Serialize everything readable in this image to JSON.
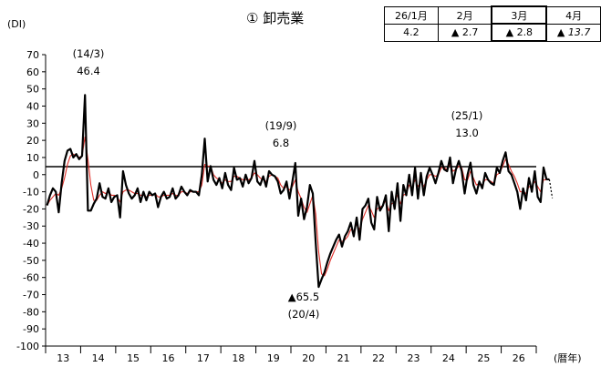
{
  "title": "① 卸売業",
  "y_unit": "(DI)",
  "x_unit": "(暦年)",
  "table": {
    "headers": [
      "26/1月",
      "2月",
      "3月",
      "4月"
    ],
    "values": [
      "4.2",
      "▲ 2.7",
      "▲ 2.8",
      "▲ 13.7"
    ],
    "highlight_index": 2,
    "forecast_index": 3
  },
  "colors": {
    "actual": "#000000",
    "trend": "#e0302a",
    "zero_line": "#000000"
  },
  "annotations": [
    {
      "date": "(14/3)",
      "value": "46.4"
    },
    {
      "date": "(19/9)",
      "value": "6.8"
    },
    {
      "date": "(20/4)",
      "value": "▲65.5"
    },
    {
      "date": "(25/1)",
      "value": "13.0"
    }
  ],
  "chart_data": {
    "type": "line",
    "x_start": "2013-01",
    "frequency": "monthly",
    "xlabel": "(暦年)",
    "ylabel": "(DI)",
    "ylim": [
      -100,
      70
    ],
    "yticks": [
      70,
      60,
      50,
      40,
      30,
      20,
      10,
      0,
      -10,
      -20,
      -30,
      -40,
      -50,
      -60,
      -70,
      -80,
      -90,
      -100
    ],
    "year_labels": [
      "13",
      "14",
      "15",
      "16",
      "17",
      "18",
      "19",
      "20",
      "21",
      "22",
      "23",
      "24",
      "25",
      "26"
    ],
    "series": [
      {
        "values": [
          -18,
          -12,
          -8,
          -10,
          -22,
          -5,
          8,
          14,
          15,
          10,
          12,
          9,
          11,
          46.4,
          -21,
          -21,
          -17,
          -14,
          -5,
          -13,
          -14,
          -8,
          -16,
          -13,
          -12,
          -25,
          2,
          -6,
          -11,
          -14,
          -12,
          -8,
          -16,
          -10,
          -15,
          -10,
          -12,
          -11,
          -19,
          -13,
          -10,
          -14,
          -13,
          -8,
          -14,
          -12,
          -7,
          -10,
          -12,
          -9,
          -10,
          -10,
          -12,
          0,
          21,
          -4,
          5,
          -3,
          -6,
          -2,
          -8,
          1,
          -6,
          -9,
          4,
          -3,
          -2,
          -7,
          0,
          -5,
          -2,
          8,
          -4,
          -6,
          -1,
          -7,
          2,
          0,
          -1,
          -4,
          -11,
          -9,
          -4,
          -14,
          -4,
          6.8,
          -24,
          -14,
          -26,
          -19,
          -6,
          -11,
          -40,
          -65.5,
          -61,
          -57,
          -51,
          -46,
          -42,
          -38,
          -35,
          -42,
          -36,
          -33,
          -28,
          -36,
          -25,
          -38,
          -20,
          -18,
          -14,
          -28,
          -32,
          -13,
          -21,
          -18,
          -12,
          -33,
          -10,
          -20,
          -5,
          -27,
          -6,
          -12,
          0,
          -12,
          4,
          -14,
          1,
          -12,
          -1,
          4,
          0,
          -5,
          1,
          8,
          3,
          2,
          10,
          -5,
          3,
          8,
          2,
          -11,
          0,
          7,
          -6,
          -11,
          -4,
          -8,
          1,
          -3,
          -5,
          -6,
          4,
          1,
          8,
          13.0,
          2,
          0,
          -5,
          -10,
          -20,
          -8,
          -15,
          -2,
          -10,
          2,
          -13,
          -16,
          4.2,
          -2.7,
          -2.8
        ]
      },
      {
        "values": [
          -18,
          -15,
          -13,
          -11,
          -12,
          -8,
          -2,
          6,
          11,
          12,
          11,
          10,
          11,
          22,
          9,
          -6,
          -15,
          -15,
          -12,
          -10,
          -11,
          -10,
          -12,
          -12,
          -13,
          -16,
          -10,
          -9,
          -9,
          -10,
          -11,
          -11,
          -12,
          -12,
          -13,
          -12,
          -12,
          -11,
          -13,
          -13,
          -12,
          -12,
          -12,
          -11,
          -12,
          -12,
          -10,
          -10,
          -11,
          -10,
          -10,
          -10,
          -10,
          -6,
          6,
          5,
          5,
          0,
          -2,
          -3,
          -5,
          -3,
          -4,
          -4,
          -1,
          -1,
          -2,
          -3,
          -3,
          -3,
          -2,
          1,
          0,
          -2,
          -3,
          -4,
          -1,
          0,
          -1,
          -2,
          -6,
          -8,
          -7,
          -9,
          -7,
          -3,
          -10,
          -14,
          -19,
          -22,
          -17,
          -12,
          -23,
          -45,
          -58,
          -59,
          -55,
          -50,
          -46,
          -42,
          -38,
          -39,
          -38,
          -36,
          -32,
          -33,
          -29,
          -32,
          -26,
          -22,
          -18,
          -21,
          -25,
          -20,
          -19,
          -18,
          -15,
          -21,
          -17,
          -16,
          -12,
          -17,
          -12,
          -11,
          -6,
          -8,
          -3,
          -7,
          -4,
          -7,
          -3,
          0,
          0,
          -1,
          0,
          4,
          4,
          3,
          6,
          2,
          3,
          5,
          4,
          -3,
          -3,
          2,
          -2,
          -6,
          -5,
          -6,
          -3,
          -3,
          -4,
          -5,
          0,
          1,
          5,
          9,
          6,
          2,
          -1,
          -5,
          -10,
          -10,
          -11,
          -7,
          -7,
          -4,
          -7,
          -10,
          -3,
          -3
        ]
      }
    ],
    "forecast": {
      "from_value": -2.8,
      "to_value": -13.7
    }
  }
}
